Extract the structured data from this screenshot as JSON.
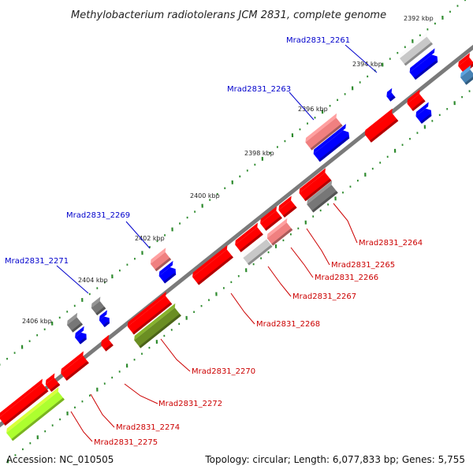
{
  "title": "Methylobacterium radiotolerans JCM 2831, complete genome",
  "footer": {
    "accession": "Accession: NC_010505",
    "summary": "Topology: circular; Length: 6,077,833 bp; Genes: 5,755"
  },
  "colors": {
    "backbone": "#808080",
    "tick_dots": "#2e8b2e",
    "label_blue": "#0000cc",
    "label_red": "#cc0000",
    "feature_red": "#ff0000",
    "feature_pink": "#f08080",
    "feature_blue": "#0000ff",
    "feature_gray": "#777777",
    "feature_lightgray": "#c8c8c8",
    "feature_olive": "#6b8e23",
    "feature_lime": "#adff2f",
    "feature_steelblue": "#4682b4"
  },
  "ticks": [
    "2392 kbp",
    "2394 kbp",
    "2396 kbp",
    "2398 kbp",
    "2400 kbp",
    "2402 kbp",
    "2404 kbp",
    "2406 kbp"
  ],
  "gene_labels_outer": [
    "Mrad2831_2261",
    "Mrad2831_2263",
    "Mrad2831_2269",
    "Mrad2831_2271"
  ],
  "gene_labels_inner": [
    "Mrad2831_2264",
    "Mrad2831_2265",
    "Mrad2831_2266",
    "Mrad2831_2267",
    "Mrad2831_2268",
    "Mrad2831_2270",
    "Mrad2831_2272",
    "Mrad2831_2274",
    "Mrad2831_2275"
  ]
}
